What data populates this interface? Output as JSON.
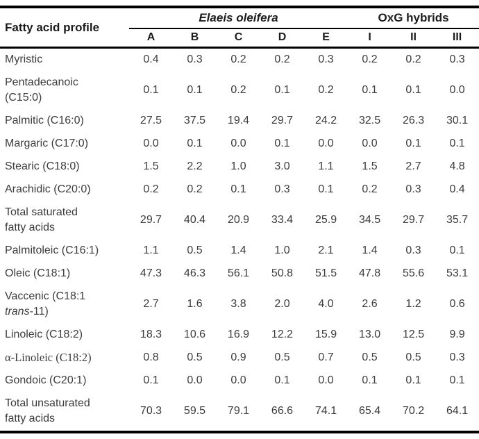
{
  "colors": {
    "background": "#ffffff",
    "rule": "#000000",
    "header_text": "#1b1b1b",
    "body_text": "#3c3c3c"
  },
  "table": {
    "corner_header": "Fatty acid profile",
    "groups": [
      {
        "label": "Elaeis oleifera",
        "italic": true,
        "col_count": 5
      },
      {
        "label": "OxG hybrids",
        "italic": false,
        "col_count": 3
      }
    ],
    "columns": [
      "A",
      "B",
      "C",
      "D",
      "E",
      "I",
      "II",
      "III"
    ],
    "rows": [
      {
        "label": "Myristic",
        "values": [
          "0.4",
          "0.3",
          "0.2",
          "0.2",
          "0.3",
          "0.2",
          "0.2",
          "0.3"
        ]
      },
      {
        "label": "Pentadecanoic (C15:0)",
        "label_lines": [
          [
            {
              "t": "Pentadecanoic"
            }
          ],
          [
            {
              "t": "(C15:0)"
            }
          ]
        ],
        "values": [
          "0.1",
          "0.1",
          "0.2",
          "0.1",
          "0.2",
          "0.1",
          "0.1",
          "0.0"
        ]
      },
      {
        "label": "Palmitic (C16:0)",
        "values": [
          "27.5",
          "37.5",
          "19.4",
          "29.7",
          "24.2",
          "32.5",
          "26.3",
          "30.1"
        ]
      },
      {
        "label": "Margaric (C17:0)",
        "values": [
          "0.0",
          "0.1",
          "0.0",
          "0.1",
          "0.0",
          "0.0",
          "0.1",
          "0.1"
        ]
      },
      {
        "label": "Stearic (C18:0)",
        "values": [
          "1.5",
          "2.2",
          "1.0",
          "3.0",
          "1.1",
          "1.5",
          "2.7",
          "4.8"
        ]
      },
      {
        "label": "Arachidic (C20:0)",
        "values": [
          "0.2",
          "0.2",
          "0.1",
          "0.3",
          "0.1",
          "0.2",
          "0.3",
          "0.4"
        ]
      },
      {
        "label": "Total saturated fatty acids",
        "label_lines": [
          [
            {
              "t": "Total saturated"
            }
          ],
          [
            {
              "t": "fatty acids"
            }
          ]
        ],
        "values": [
          "29.7",
          "40.4",
          "20.9",
          "33.4",
          "25.9",
          "34.5",
          "29.7",
          "35.7"
        ]
      },
      {
        "label": "Palmitoleic (C16:1)",
        "values": [
          "1.1",
          "0.5",
          "1.4",
          "1.0",
          "2.1",
          "1.4",
          "0.3",
          "0.1"
        ]
      },
      {
        "label": "Oleic (C18:1)",
        "values": [
          "47.3",
          "46.3",
          "56.1",
          "50.8",
          "51.5",
          "47.8",
          "55.6",
          "53.1"
        ]
      },
      {
        "label": "Vaccenic (C18:1 trans-11)",
        "label_lines": [
          [
            {
              "t": "Vaccenic (C18:1"
            }
          ],
          [
            {
              "t": "trans",
              "i": true
            },
            {
              "t": "-11)"
            }
          ]
        ],
        "values": [
          "2.7",
          "1.6",
          "3.8",
          "2.0",
          "4.0",
          "2.6",
          "1.2",
          "0.6"
        ]
      },
      {
        "label": "Linoleic (C18:2)",
        "values": [
          "18.3",
          "10.6",
          "16.9",
          "12.2",
          "15.9",
          "13.0",
          "12.5",
          "9.9"
        ]
      },
      {
        "label": "α-Linoleic (C18:2)",
        "serif": true,
        "values": [
          "0.8",
          "0.5",
          "0.9",
          "0.5",
          "0.7",
          "0.5",
          "0.5",
          "0.3"
        ]
      },
      {
        "label": "Gondoic (C20:1)",
        "values": [
          "0.1",
          "0.0",
          "0.0",
          "0.1",
          "0.0",
          "0.1",
          "0.1",
          "0.1"
        ]
      },
      {
        "label": "Total unsaturated fatty acids",
        "label_lines": [
          [
            {
              "t": "Total unsaturated"
            }
          ],
          [
            {
              "t": "fatty acids"
            }
          ]
        ],
        "values": [
          "70.3",
          "59.5",
          "79.1",
          "66.6",
          "74.1",
          "65.4",
          "70.2",
          "64.1"
        ]
      }
    ]
  }
}
